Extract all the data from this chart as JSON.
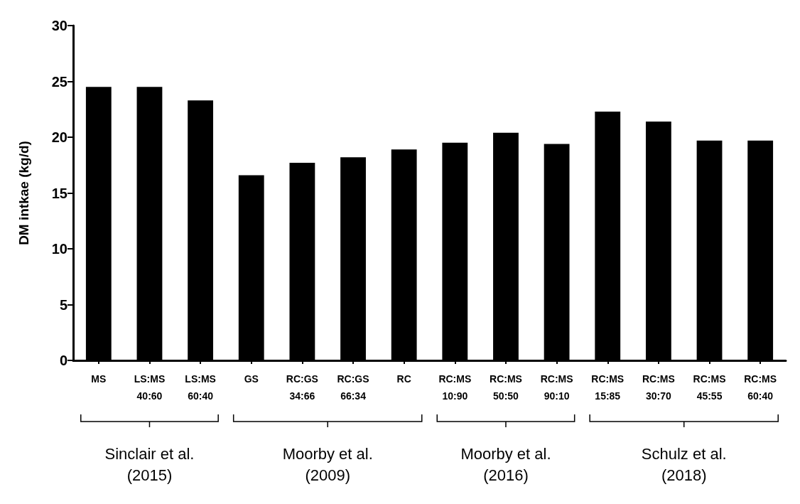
{
  "chart_data": {
    "type": "bar",
    "ylabel": "DM intkae (kg/d)",
    "categories": [
      "MS",
      "LS:MS\n40:60",
      "LS:MS\n60:40",
      "GS",
      "RC:GS\n34:66",
      "RC:GS\n66:34",
      "RC",
      "RC:MS\n10:90",
      "RC:MS\n50:50",
      "RC:MS\n90:10",
      "RC:MS\n15:85",
      "RC:MS\n30:70",
      "RC:MS\n45:55",
      "RC:MS\n60:40"
    ],
    "values": [
      24.5,
      24.5,
      23.3,
      16.6,
      17.7,
      18.2,
      18.9,
      19.5,
      20.4,
      19.4,
      22.3,
      21.4,
      19.7,
      19.7
    ],
    "color": "#000000",
    "ylim": [
      0,
      30
    ],
    "yticks": [
      0,
      5,
      10,
      15,
      20,
      25,
      30
    ],
    "grid": false,
    "annotations": [
      "Sinclair et al.\n(2015)",
      "Moorby et al.\n(2009)",
      "Moorby et al.\n(2016)",
      "Schulz et al.\n(2018)"
    ]
  }
}
